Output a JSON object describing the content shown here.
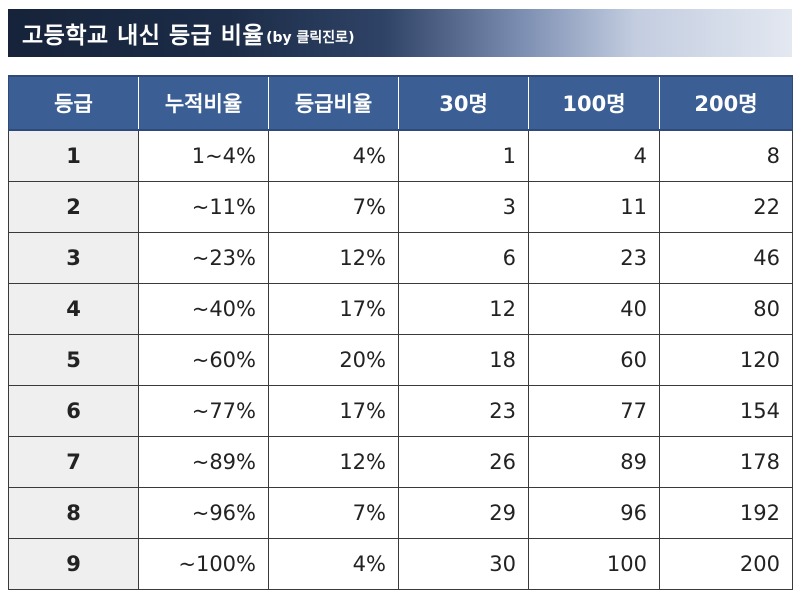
{
  "title": {
    "main": "고등학교 내신 등급 비율",
    "sub": "(by 클릭진로)"
  },
  "colors": {
    "header_bg": "#3b5e95",
    "title_bar_dark": "#16233a",
    "grade_cell_bg": "#efefef"
  },
  "table": {
    "columns": [
      "등급",
      "누적비율",
      "등급비율",
      "30명",
      "100명",
      "200명"
    ],
    "rows": [
      {
        "grade": "1",
        "cumulative": "1~4%",
        "ratio": "4%",
        "n30": "1",
        "n100": "4",
        "n200": "8"
      },
      {
        "grade": "2",
        "cumulative": "~11%",
        "ratio": "7%",
        "n30": "3",
        "n100": "11",
        "n200": "22"
      },
      {
        "grade": "3",
        "cumulative": "~23%",
        "ratio": "12%",
        "n30": "6",
        "n100": "23",
        "n200": "46"
      },
      {
        "grade": "4",
        "cumulative": "~40%",
        "ratio": "17%",
        "n30": "12",
        "n100": "40",
        "n200": "80"
      },
      {
        "grade": "5",
        "cumulative": "~60%",
        "ratio": "20%",
        "n30": "18",
        "n100": "60",
        "n200": "120"
      },
      {
        "grade": "6",
        "cumulative": "~77%",
        "ratio": "17%",
        "n30": "23",
        "n100": "77",
        "n200": "154"
      },
      {
        "grade": "7",
        "cumulative": "~89%",
        "ratio": "12%",
        "n30": "26",
        "n100": "89",
        "n200": "178"
      },
      {
        "grade": "8",
        "cumulative": "~96%",
        "ratio": "7%",
        "n30": "29",
        "n100": "96",
        "n200": "192"
      },
      {
        "grade": "9",
        "cumulative": "~100%",
        "ratio": "4%",
        "n30": "30",
        "n100": "100",
        "n200": "200"
      }
    ]
  }
}
